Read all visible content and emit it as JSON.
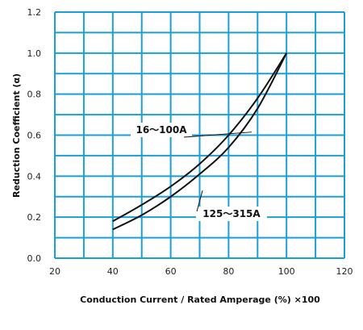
{
  "chart_data": {
    "type": "line",
    "title": "",
    "xlabel": "Conduction Current / Rated Amperage (%) ×100",
    "ylabel": "Reduction Coefficient (α)",
    "xlim": [
      20,
      120
    ],
    "ylim": [
      0.0,
      1.2
    ],
    "x_ticks": [
      20,
      40,
      60,
      80,
      100,
      120
    ],
    "y_ticks": [
      "0.0",
      "0.2",
      "0.4",
      "0.6",
      "0.8",
      "1.0",
      "1.2"
    ],
    "grid": true,
    "grid_minor_step_x": 10,
    "grid_minor_step_y": 0.1,
    "colors": {
      "grid": "#1a9fd4",
      "line": "#111111"
    },
    "series": [
      {
        "name": "16～100A",
        "x": [
          40,
          50,
          60,
          70,
          80,
          90,
          100
        ],
        "y": [
          0.18,
          0.26,
          0.35,
          0.46,
          0.6,
          0.78,
          1.0
        ],
        "label_anchor": [
          90,
          0.56
        ]
      },
      {
        "name": "125～315A",
        "x": [
          40,
          50,
          60,
          70,
          80,
          90,
          100
        ],
        "y": [
          0.14,
          0.21,
          0.3,
          0.41,
          0.54,
          0.73,
          1.0
        ],
        "label_anchor": [
          68,
          0.22
        ]
      }
    ]
  }
}
